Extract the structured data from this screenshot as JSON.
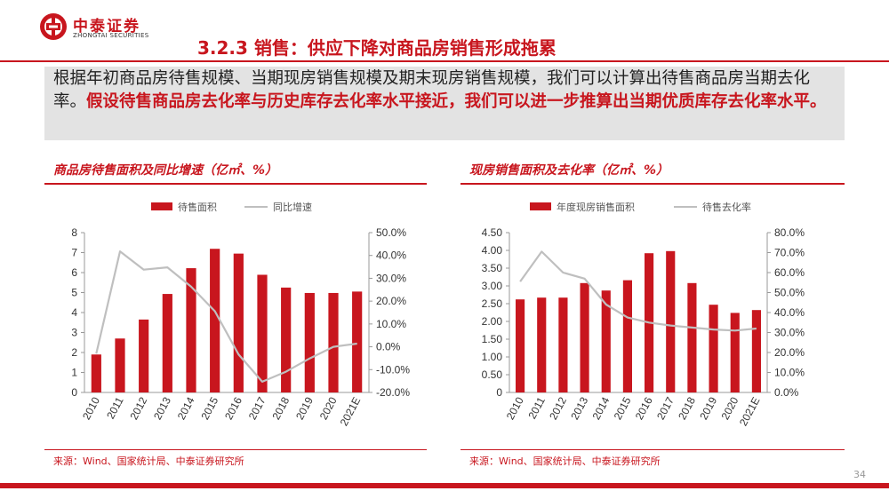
{
  "logo": {
    "cn": "中泰证券",
    "en": "ZHONGTAI SECURITIES"
  },
  "title": "3.2.3 销售：供应下降对商品房销售形成拖累",
  "intro": {
    "plain": "根据年初商品房待售规模、当期现房销售规模及期末现房销售规模，我们可以计算出待售商品房当期去化率。",
    "highlight": "假设待售商品房去化率与历史库存去化率水平接近，我们可以进一步推算出当期优质库存去化率水平。"
  },
  "left_panel": {
    "title": "商品房待售面积及同比增速（亿㎡、%）",
    "source": "来源：Wind、国家统计局、中泰证券研究所"
  },
  "right_panel": {
    "title": "现房销售面积及去化率（亿㎡、%）",
    "source": "来源：Wind、国家统计局、中泰证券研究所"
  },
  "page_number": "34",
  "colors": {
    "bar": "#c8161e",
    "line": "#bfbfbf",
    "accent": "#c8161e"
  },
  "chart_data": [
    {
      "type": "bar",
      "title": "商品房待售面积及同比增速（亿㎡、%）",
      "categories": [
        "2010",
        "2011",
        "2012",
        "2013",
        "2014",
        "2015",
        "2016",
        "2017",
        "2018",
        "2019",
        "2020",
        "2021E"
      ],
      "series": [
        {
          "name": "待售面积",
          "type": "bar",
          "axis": "left",
          "values": [
            1.9,
            2.7,
            3.65,
            4.93,
            6.22,
            7.19,
            6.95,
            5.89,
            5.25,
            4.98,
            4.98,
            5.05
          ]
        },
        {
          "name": "同比增速",
          "type": "line",
          "axis": "right",
          "values": [
            -3.0,
            41.8,
            33.8,
            34.8,
            26.3,
            15.6,
            -3.3,
            -15.3,
            -10.9,
            -5.1,
            0.0,
            1.4
          ]
        }
      ],
      "y_left": {
        "range": [
          0,
          8
        ],
        "ticks": [
          "0",
          "1",
          "2",
          "3",
          "4",
          "5",
          "6",
          "7",
          "8"
        ]
      },
      "y_right": {
        "range": [
          -20,
          50
        ],
        "ticks": [
          "-20.0%",
          "-10.0%",
          "0.0%",
          "10.0%",
          "20.0%",
          "30.0%",
          "40.0%",
          "50.0%"
        ]
      },
      "legend": "top-center",
      "grid": false
    },
    {
      "type": "bar",
      "title": "现房销售面积及去化率（亿㎡、%）",
      "categories": [
        "2010",
        "2011",
        "2012",
        "2013",
        "2014",
        "2015",
        "2016",
        "2017",
        "2018",
        "2019",
        "2020",
        "2021E"
      ],
      "series": [
        {
          "name": "年度现房销售面积",
          "type": "bar",
          "axis": "left",
          "values": [
            2.62,
            2.67,
            2.67,
            3.08,
            2.87,
            3.16,
            3.92,
            3.98,
            3.08,
            2.47,
            2.24,
            2.32
          ]
        },
        {
          "name": "待售去化率",
          "type": "line",
          "axis": "right",
          "values": [
            55.5,
            70.5,
            60.0,
            57.0,
            44.0,
            37.5,
            35.0,
            33.5,
            32.5,
            31.5,
            31.0,
            32.0
          ]
        }
      ],
      "y_left": {
        "range": [
          0,
          4.5
        ],
        "ticks": [
          "0",
          "0.50",
          "1.00",
          "1.50",
          "2.00",
          "2.50",
          "3.00",
          "3.50",
          "4.00",
          "4.50"
        ]
      },
      "y_right": {
        "range": [
          0,
          80
        ],
        "ticks": [
          "0.0%",
          "10.0%",
          "20.0%",
          "30.0%",
          "40.0%",
          "50.0%",
          "60.0%",
          "70.0%",
          "80.0%"
        ]
      },
      "legend": "top-center",
      "grid": false
    }
  ]
}
